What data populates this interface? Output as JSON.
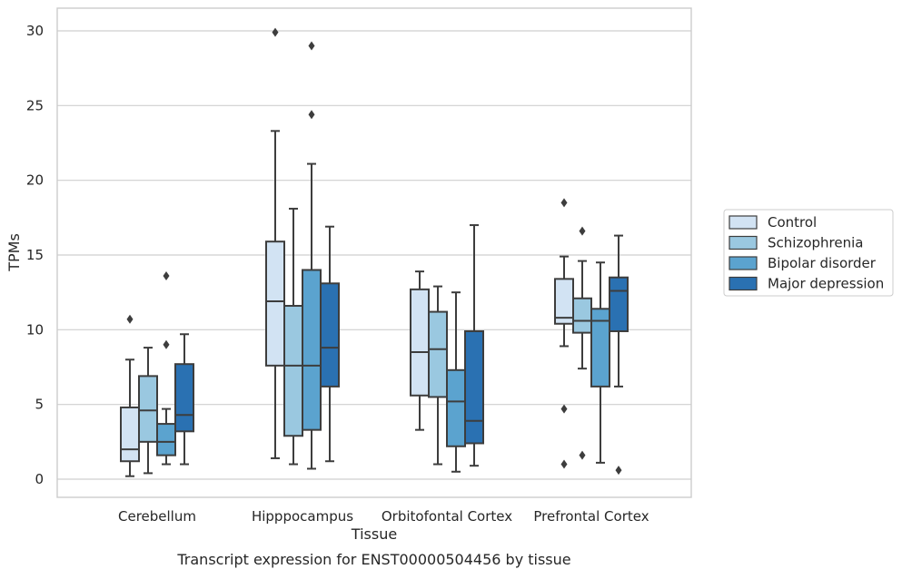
{
  "chart_data": {
    "type": "box",
    "xlabel": "Tissue",
    "ylabel": "TPMs",
    "caption": "Transcript expression for ENST00000504456 by tissue",
    "ylim": [
      -1.2,
      31.5
    ],
    "yticks": [
      0,
      5,
      10,
      15,
      20,
      25,
      30
    ],
    "grid": "horizontal",
    "legend_position": "right",
    "categories": [
      "Cerebellum",
      "Hipppocampus",
      "Orbitofontal Cortex",
      "Prefrontal Cortex"
    ],
    "series": [
      {
        "name": "Control",
        "color": "#d2e3f3",
        "boxes": [
          {
            "whisker_low": 0.2,
            "q1": 1.2,
            "median": 2.0,
            "q3": 4.8,
            "whisker_high": 8.0,
            "outliers": [
              10.7
            ]
          },
          {
            "whisker_low": 1.4,
            "q1": 7.6,
            "median": 11.9,
            "q3": 15.9,
            "whisker_high": 23.3,
            "outliers": [
              29.9
            ]
          },
          {
            "whisker_low": 3.3,
            "q1": 5.6,
            "median": 8.5,
            "q3": 12.7,
            "whisker_high": 13.9,
            "outliers": []
          },
          {
            "whisker_low": 8.9,
            "q1": 10.4,
            "median": 10.8,
            "q3": 13.4,
            "whisker_high": 14.9,
            "outliers": [
              18.5,
              4.7,
              1.0
            ]
          }
        ]
      },
      {
        "name": "Schizophrenia",
        "color": "#9ac8e0",
        "boxes": [
          {
            "whisker_low": 0.4,
            "q1": 2.5,
            "median": 4.6,
            "q3": 6.9,
            "whisker_high": 8.8,
            "outliers": []
          },
          {
            "whisker_low": 1.0,
            "q1": 2.9,
            "median": 7.6,
            "q3": 11.6,
            "whisker_high": 18.1,
            "outliers": []
          },
          {
            "whisker_low": 1.0,
            "q1": 5.5,
            "median": 8.7,
            "q3": 11.2,
            "whisker_high": 12.9,
            "outliers": []
          },
          {
            "whisker_low": 7.4,
            "q1": 9.8,
            "median": 10.6,
            "q3": 12.1,
            "whisker_high": 14.6,
            "outliers": [
              16.6,
              1.6
            ]
          }
        ]
      },
      {
        "name": "Bipolar disorder",
        "color": "#5ba3cf",
        "boxes": [
          {
            "whisker_low": 1.0,
            "q1": 1.6,
            "median": 2.5,
            "q3": 3.7,
            "whisker_high": 4.7,
            "outliers": [
              13.6,
              9.0
            ]
          },
          {
            "whisker_low": 0.7,
            "q1": 3.3,
            "median": 7.6,
            "q3": 14.0,
            "whisker_high": 21.1,
            "outliers": [
              29.0,
              24.4
            ]
          },
          {
            "whisker_low": 0.5,
            "q1": 2.2,
            "median": 5.2,
            "q3": 7.3,
            "whisker_high": 12.5,
            "outliers": []
          },
          {
            "whisker_low": 1.1,
            "q1": 6.2,
            "median": 10.6,
            "q3": 11.4,
            "whisker_high": 14.5,
            "outliers": []
          }
        ]
      },
      {
        "name": "Major depression",
        "color": "#2a71b2",
        "boxes": [
          {
            "whisker_low": 1.0,
            "q1": 3.2,
            "median": 4.3,
            "q3": 7.7,
            "whisker_high": 9.7,
            "outliers": []
          },
          {
            "whisker_low": 1.2,
            "q1": 6.2,
            "median": 8.8,
            "q3": 13.1,
            "whisker_high": 16.9,
            "outliers": []
          },
          {
            "whisker_low": 0.9,
            "q1": 2.4,
            "median": 3.9,
            "q3": 9.9,
            "whisker_high": 17.0,
            "outliers": []
          },
          {
            "whisker_low": 6.2,
            "q1": 9.9,
            "median": 12.6,
            "q3": 13.5,
            "whisker_high": 16.3,
            "outliers": [
              0.6
            ]
          }
        ]
      }
    ]
  }
}
